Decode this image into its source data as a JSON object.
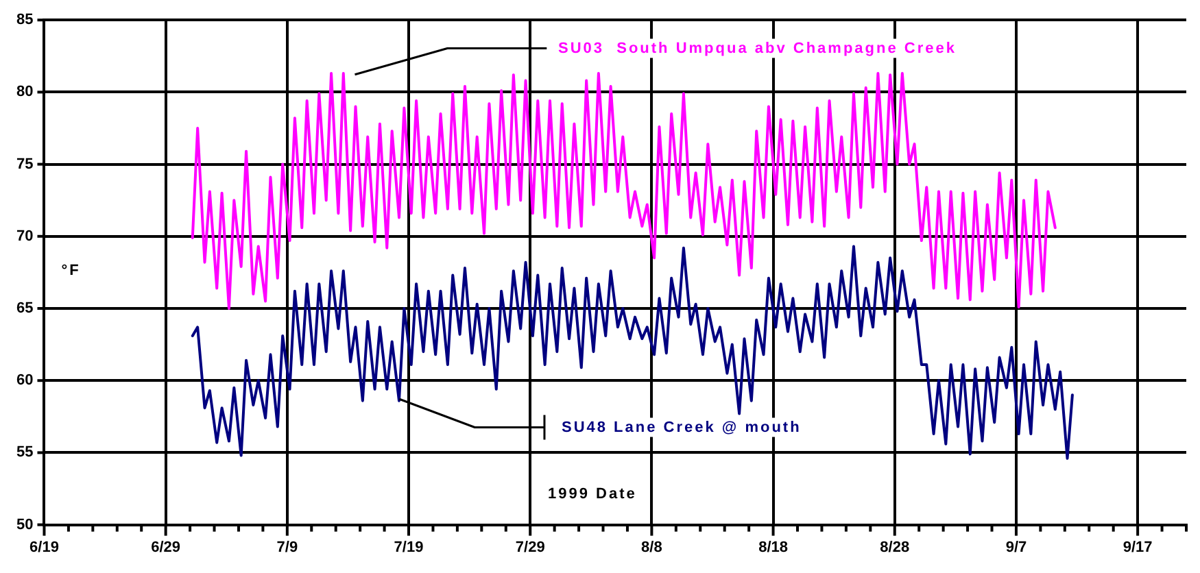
{
  "chart_data": {
    "type": "line",
    "xlabel": "1999 Date",
    "ylabel": "°F",
    "grid": true,
    "legend": false,
    "marker": "none",
    "line_style": "solid",
    "xlim": [
      "1999-06-19",
      "1999-09-21"
    ],
    "xticks": [
      {
        "value": "1999-06-19",
        "label": "6/19"
      },
      {
        "value": "1999-06-21",
        "label": null
      },
      {
        "value": "1999-06-23",
        "label": null
      },
      {
        "value": "1999-06-25",
        "label": null
      },
      {
        "value": "1999-06-27",
        "label": null
      },
      {
        "value": "1999-06-29",
        "label": "6/29"
      },
      {
        "value": "1999-07-01",
        "label": null
      },
      {
        "value": "1999-07-03",
        "label": null
      },
      {
        "value": "1999-07-05",
        "label": null
      },
      {
        "value": "1999-07-07",
        "label": null
      },
      {
        "value": "1999-07-09",
        "label": "7/9"
      },
      {
        "value": "1999-07-11",
        "label": null
      },
      {
        "value": "1999-07-13",
        "label": null
      },
      {
        "value": "1999-07-15",
        "label": null
      },
      {
        "value": "1999-07-17",
        "label": null
      },
      {
        "value": "1999-07-19",
        "label": "7/19"
      },
      {
        "value": "1999-07-21",
        "label": null
      },
      {
        "value": "1999-07-23",
        "label": null
      },
      {
        "value": "1999-07-25",
        "label": null
      },
      {
        "value": "1999-07-27",
        "label": null
      },
      {
        "value": "1999-07-29",
        "label": "7/29"
      },
      {
        "value": "1999-07-31",
        "label": null
      },
      {
        "value": "1999-08-02",
        "label": null
      },
      {
        "value": "1999-08-04",
        "label": null
      },
      {
        "value": "1999-08-06",
        "label": null
      },
      {
        "value": "1999-08-08",
        "label": "8/8"
      },
      {
        "value": "1999-08-10",
        "label": null
      },
      {
        "value": "1999-08-12",
        "label": null
      },
      {
        "value": "1999-08-14",
        "label": null
      },
      {
        "value": "1999-08-16",
        "label": null
      },
      {
        "value": "1999-08-18",
        "label": "8/18"
      },
      {
        "value": "1999-08-20",
        "label": null
      },
      {
        "value": "1999-08-22",
        "label": null
      },
      {
        "value": "1999-08-24",
        "label": null
      },
      {
        "value": "1999-08-26",
        "label": null
      },
      {
        "value": "1999-08-28",
        "label": "8/28"
      },
      {
        "value": "1999-08-30",
        "label": null
      },
      {
        "value": "1999-09-01",
        "label": null
      },
      {
        "value": "1999-09-03",
        "label": null
      },
      {
        "value": "1999-09-05",
        "label": null
      },
      {
        "value": "1999-09-07",
        "label": "9/7"
      },
      {
        "value": "1999-09-09",
        "label": null
      },
      {
        "value": "1999-09-11",
        "label": null
      },
      {
        "value": "1999-09-13",
        "label": null
      },
      {
        "value": "1999-09-15",
        "label": null
      },
      {
        "value": "1999-09-17",
        "label": "9/17"
      },
      {
        "value": "1999-09-19",
        "label": null
      },
      {
        "value": "1999-09-21",
        "label": null
      }
    ],
    "ylim": [
      50,
      85
    ],
    "yticks": [
      50,
      55,
      60,
      65,
      70,
      75,
      80,
      85
    ],
    "series": [
      {
        "name": "SU03  South Umpqua abv Champagne Creek",
        "color": "#ff00ff",
        "x": [
          "1999-07-01T05:00",
          "1999-07-01T15:00",
          "1999-07-02T05:00",
          "1999-07-02T15:00",
          "1999-07-03T05:00",
          "1999-07-03T15:00",
          "1999-07-04T05:00",
          "1999-07-04T15:00",
          "1999-07-05T05:00",
          "1999-07-05T15:00",
          "1999-07-06T05:00",
          "1999-07-06T15:00",
          "1999-07-07T05:00",
          "1999-07-07T15:00",
          "1999-07-08T05:00",
          "1999-07-08T15:00",
          "1999-07-09T05:00",
          "1999-07-09T15:00",
          "1999-07-10T05:00",
          "1999-07-10T15:00",
          "1999-07-11T05:00",
          "1999-07-11T15:00",
          "1999-07-12T05:00",
          "1999-07-12T15:00",
          "1999-07-13T05:00",
          "1999-07-13T15:00",
          "1999-07-14T05:00",
          "1999-07-14T15:00",
          "1999-07-15T05:00",
          "1999-07-15T15:00",
          "1999-07-16T05:00",
          "1999-07-16T15:00",
          "1999-07-17T05:00",
          "1999-07-17T15:00",
          "1999-07-18T05:00",
          "1999-07-18T15:00",
          "1999-07-19T05:00",
          "1999-07-19T15:00",
          "1999-07-20T05:00",
          "1999-07-20T15:00",
          "1999-07-21T05:00",
          "1999-07-21T15:00",
          "1999-07-22T05:00",
          "1999-07-22T15:00",
          "1999-07-23T05:00",
          "1999-07-23T15:00",
          "1999-07-24T05:00",
          "1999-07-24T15:00",
          "1999-07-25T05:00",
          "1999-07-25T15:00",
          "1999-07-26T05:00",
          "1999-07-26T15:00",
          "1999-07-27T05:00",
          "1999-07-27T15:00",
          "1999-07-28T05:00",
          "1999-07-28T15:00",
          "1999-07-29T05:00",
          "1999-07-29T15:00",
          "1999-07-30T05:00",
          "1999-07-30T15:00",
          "1999-07-31T05:00",
          "1999-07-31T15:00",
          "1999-08-01T05:00",
          "1999-08-01T15:00",
          "1999-08-02T05:00",
          "1999-08-02T15:00",
          "1999-08-03T05:00",
          "1999-08-03T15:00",
          "1999-08-04T05:00",
          "1999-08-04T15:00",
          "1999-08-05T05:00",
          "1999-08-05T15:00",
          "1999-08-06T05:00",
          "1999-08-06T15:00",
          "1999-08-07T05:00",
          "1999-08-07T15:00",
          "1999-08-08T05:00",
          "1999-08-08T15:00",
          "1999-08-09T05:00",
          "1999-08-09T15:00",
          "1999-08-10T05:00",
          "1999-08-10T15:00",
          "1999-08-11T05:00",
          "1999-08-11T15:00",
          "1999-08-12T05:00",
          "1999-08-12T15:00",
          "1999-08-13T05:00",
          "1999-08-13T15:00",
          "1999-08-14T05:00",
          "1999-08-14T15:00",
          "1999-08-15T05:00",
          "1999-08-15T15:00",
          "1999-08-16T05:00",
          "1999-08-16T15:00",
          "1999-08-17T05:00",
          "1999-08-17T15:00",
          "1999-08-18T05:00",
          "1999-08-18T15:00",
          "1999-08-19T05:00",
          "1999-08-19T15:00",
          "1999-08-20T05:00",
          "1999-08-20T15:00",
          "1999-08-21T05:00",
          "1999-08-21T15:00",
          "1999-08-22T05:00",
          "1999-08-22T15:00",
          "1999-08-23T05:00",
          "1999-08-23T15:00",
          "1999-08-24T05:00",
          "1999-08-24T15:00",
          "1999-08-25T05:00",
          "1999-08-25T15:00",
          "1999-08-26T05:00",
          "1999-08-26T15:00",
          "1999-08-27T05:00",
          "1999-08-27T15:00",
          "1999-08-28T05:00",
          "1999-08-28T15:00",
          "1999-08-29T05:00",
          "1999-08-29T15:00",
          "1999-08-30T05:00",
          "1999-08-30T15:00",
          "1999-08-31T05:00",
          "1999-08-31T15:00",
          "1999-09-01T05:00",
          "1999-09-01T15:00",
          "1999-09-02T05:00",
          "1999-09-02T15:00",
          "1999-09-03T05:00",
          "1999-09-03T15:00",
          "1999-09-04T05:00",
          "1999-09-04T15:00",
          "1999-09-05T05:00",
          "1999-09-05T15:00",
          "1999-09-06T05:00",
          "1999-09-06T15:00",
          "1999-09-07T05:00",
          "1999-09-07T15:00",
          "1999-09-08T05:00",
          "1999-09-08T15:00",
          "1999-09-09T05:00",
          "1999-09-09T15:00",
          "1999-09-10T05:00"
        ],
        "values": [
          69.9,
          77.5,
          68.2,
          73.1,
          66.4,
          73.0,
          65.0,
          72.5,
          67.9,
          75.9,
          66.0,
          69.3,
          65.5,
          74.1,
          67.1,
          75.0,
          69.7,
          78.2,
          70.6,
          79.4,
          71.6,
          79.9,
          72.5,
          81.3,
          71.6,
          81.3,
          70.4,
          79.0,
          70.7,
          76.9,
          69.6,
          77.8,
          69.2,
          77.3,
          71.3,
          78.9,
          71.6,
          79.4,
          71.3,
          76.9,
          71.6,
          78.5,
          71.9,
          79.9,
          71.9,
          80.4,
          71.6,
          76.9,
          70.2,
          79.2,
          71.9,
          80.1,
          72.2,
          81.2,
          72.5,
          80.8,
          71.6,
          79.4,
          71.3,
          79.4,
          70.7,
          79.2,
          70.6,
          77.8,
          70.7,
          80.8,
          72.2,
          81.3,
          73.1,
          80.4,
          73.1,
          76.9,
          71.3,
          73.1,
          70.7,
          72.2,
          68.5,
          77.6,
          70.2,
          78.5,
          72.9,
          79.9,
          71.3,
          74.4,
          70.1,
          76.4,
          71.0,
          73.4,
          69.4,
          73.9,
          67.3,
          73.8,
          67.8,
          77.3,
          71.3,
          79.0,
          72.9,
          78.1,
          70.8,
          78.0,
          71.3,
          77.6,
          71.0,
          78.9,
          70.7,
          79.4,
          73.1,
          76.9,
          71.3,
          79.9,
          72.0,
          80.3,
          73.4,
          81.3,
          73.1,
          81.2,
          75.0,
          81.3,
          75.0,
          76.4,
          69.7,
          73.4,
          66.4,
          73.1,
          66.4,
          73.1,
          65.7,
          73.0,
          65.6,
          73.1,
          66.2,
          72.2,
          67.0,
          74.4,
          68.5,
          73.9,
          65.1,
          72.5,
          66.0,
          73.9,
          66.2,
          73.1,
          70.6
        ]
      },
      {
        "name": "SU48 Lane Creek @ mouth",
        "color": "#000080",
        "x": [
          "1999-07-01T05:00",
          "1999-07-01T15:00",
          "1999-07-02T05:00",
          "1999-07-02T15:00",
          "1999-07-03T05:00",
          "1999-07-03T15:00",
          "1999-07-04T05:00",
          "1999-07-04T15:00",
          "1999-07-05T05:00",
          "1999-07-05T15:00",
          "1999-07-06T05:00",
          "1999-07-06T15:00",
          "1999-07-07T05:00",
          "1999-07-07T15:00",
          "1999-07-08T05:00",
          "1999-07-08T15:00",
          "1999-07-09T05:00",
          "1999-07-09T15:00",
          "1999-07-10T05:00",
          "1999-07-10T15:00",
          "1999-07-11T05:00",
          "1999-07-11T15:00",
          "1999-07-12T05:00",
          "1999-07-12T15:00",
          "1999-07-13T05:00",
          "1999-07-13T15:00",
          "1999-07-14T05:00",
          "1999-07-14T15:00",
          "1999-07-15T05:00",
          "1999-07-15T15:00",
          "1999-07-16T05:00",
          "1999-07-16T15:00",
          "1999-07-17T05:00",
          "1999-07-17T15:00",
          "1999-07-18T05:00",
          "1999-07-18T15:00",
          "1999-07-19T05:00",
          "1999-07-19T15:00",
          "1999-07-20T05:00",
          "1999-07-20T15:00",
          "1999-07-21T05:00",
          "1999-07-21T15:00",
          "1999-07-22T05:00",
          "1999-07-22T15:00",
          "1999-07-23T05:00",
          "1999-07-23T15:00",
          "1999-07-24T05:00",
          "1999-07-24T15:00",
          "1999-07-25T05:00",
          "1999-07-25T15:00",
          "1999-07-26T05:00",
          "1999-07-26T15:00",
          "1999-07-27T05:00",
          "1999-07-27T15:00",
          "1999-07-28T05:00",
          "1999-07-28T15:00",
          "1999-07-29T05:00",
          "1999-07-29T15:00",
          "1999-07-30T05:00",
          "1999-07-30T15:00",
          "1999-07-31T05:00",
          "1999-07-31T15:00",
          "1999-08-01T05:00",
          "1999-08-01T15:00",
          "1999-08-02T05:00",
          "1999-08-02T15:00",
          "1999-08-03T05:00",
          "1999-08-03T15:00",
          "1999-08-04T05:00",
          "1999-08-04T15:00",
          "1999-08-05T05:00",
          "1999-08-05T15:00",
          "1999-08-06T05:00",
          "1999-08-06T15:00",
          "1999-08-07T05:00",
          "1999-08-07T15:00",
          "1999-08-08T05:00",
          "1999-08-08T15:00",
          "1999-08-09T05:00",
          "1999-08-09T15:00",
          "1999-08-10T05:00",
          "1999-08-10T15:00",
          "1999-08-11T05:00",
          "1999-08-11T15:00",
          "1999-08-12T05:00",
          "1999-08-12T15:00",
          "1999-08-13T05:00",
          "1999-08-13T15:00",
          "1999-08-14T05:00",
          "1999-08-14T15:00",
          "1999-08-15T05:00",
          "1999-08-15T15:00",
          "1999-08-16T05:00",
          "1999-08-16T15:00",
          "1999-08-17T05:00",
          "1999-08-17T15:00",
          "1999-08-18T05:00",
          "1999-08-18T15:00",
          "1999-08-19T05:00",
          "1999-08-19T15:00",
          "1999-08-20T05:00",
          "1999-08-20T15:00",
          "1999-08-21T05:00",
          "1999-08-21T15:00",
          "1999-08-22T05:00",
          "1999-08-22T15:00",
          "1999-08-23T05:00",
          "1999-08-23T15:00",
          "1999-08-24T05:00",
          "1999-08-24T15:00",
          "1999-08-25T05:00",
          "1999-08-25T15:00",
          "1999-08-26T05:00",
          "1999-08-26T15:00",
          "1999-08-27T05:00",
          "1999-08-27T15:00",
          "1999-08-28T05:00",
          "1999-08-28T15:00",
          "1999-08-29T05:00",
          "1999-08-29T15:00",
          "1999-08-30T05:00",
          "1999-08-30T15:00",
          "1999-08-31T05:00",
          "1999-08-31T15:00",
          "1999-09-01T05:00",
          "1999-09-01T15:00",
          "1999-09-02T05:00",
          "1999-09-02T15:00",
          "1999-09-03T05:00",
          "1999-09-03T15:00",
          "1999-09-04T05:00",
          "1999-09-04T15:00",
          "1999-09-05T05:00",
          "1999-09-05T15:00",
          "1999-09-06T05:00",
          "1999-09-06T15:00",
          "1999-09-07T05:00",
          "1999-09-07T15:00",
          "1999-09-08T05:00",
          "1999-09-08T15:00",
          "1999-09-09T05:00",
          "1999-09-09T15:00",
          "1999-09-10T05:00",
          "1999-09-10T15:00",
          "1999-09-11T05:00",
          "1999-09-11T15:00"
        ],
        "values": [
          63.1,
          63.7,
          58.1,
          59.3,
          55.7,
          58.1,
          55.8,
          59.5,
          54.8,
          61.4,
          58.3,
          60.0,
          57.4,
          61.8,
          56.8,
          63.1,
          59.4,
          66.2,
          61.1,
          66.7,
          61.1,
          66.7,
          62.0,
          67.6,
          63.6,
          67.6,
          61.3,
          63.7,
          58.6,
          64.1,
          59.4,
          63.7,
          59.4,
          62.7,
          58.6,
          65.0,
          61.1,
          66.7,
          62.0,
          66.2,
          61.8,
          66.2,
          61.1,
          67.3,
          63.2,
          67.8,
          61.9,
          65.3,
          61.1,
          65.0,
          59.4,
          66.2,
          62.7,
          67.6,
          63.6,
          68.2,
          63.1,
          67.3,
          61.1,
          66.7,
          62.0,
          67.8,
          62.9,
          66.4,
          60.9,
          67.1,
          62.0,
          66.7,
          63.1,
          67.6,
          63.7,
          65.0,
          62.9,
          64.4,
          62.9,
          63.7,
          61.8,
          65.7,
          61.9,
          67.1,
          64.4,
          69.2,
          63.9,
          65.3,
          61.8,
          65.0,
          62.7,
          63.7,
          60.5,
          62.5,
          57.7,
          62.9,
          58.6,
          64.2,
          61.8,
          67.1,
          63.7,
          66.7,
          63.4,
          65.7,
          62.0,
          64.6,
          62.7,
          66.7,
          61.6,
          66.7,
          63.7,
          67.6,
          64.4,
          69.3,
          63.1,
          66.4,
          63.7,
          68.2,
          64.6,
          68.5,
          64.8,
          67.6,
          64.4,
          65.6,
          61.1,
          61.1,
          56.3,
          60.0,
          55.6,
          61.1,
          56.8,
          61.1,
          54.9,
          60.8,
          55.8,
          60.9,
          57.1,
          61.6,
          59.5,
          62.3,
          56.3,
          61.1,
          56.3,
          62.7,
          58.3,
          61.1,
          58.0,
          60.6,
          54.6,
          59.0
        ]
      }
    ]
  }
}
